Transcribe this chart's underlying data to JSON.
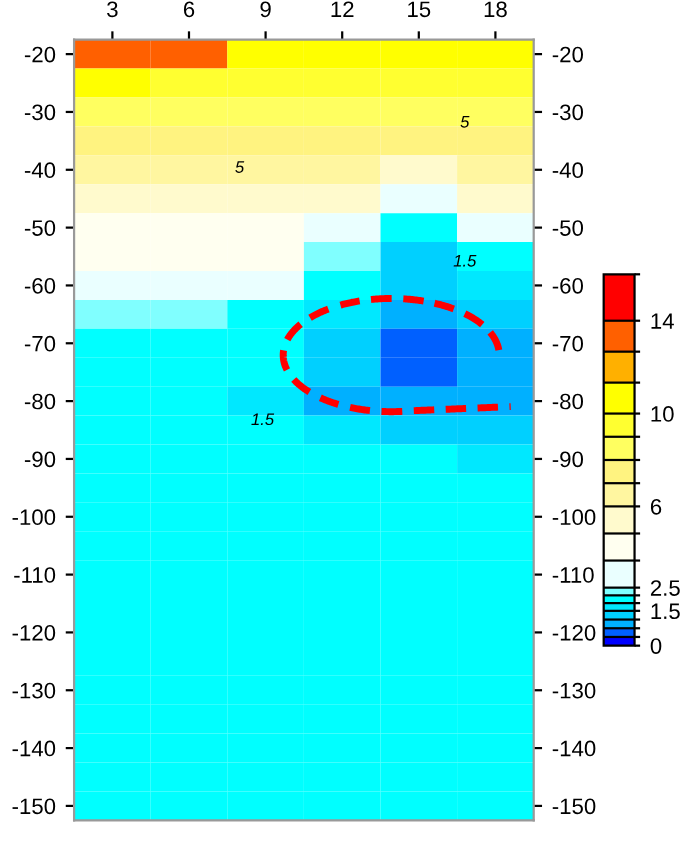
{
  "chart_data": {
    "type": "heatmap",
    "categories": [
      "3",
      "6",
      "9",
      "12",
      "15",
      "18"
    ],
    "y_categories": [
      "-20",
      null,
      "-30",
      null,
      "-40",
      null,
      "-50",
      null,
      "-60",
      null,
      "-70",
      null,
      "-80",
      null,
      "-90",
      null,
      "-100",
      null,
      "-110",
      null,
      "-120",
      null,
      "-130",
      null,
      "-140",
      null,
      "-150"
    ],
    "cells": [
      [
        13.33,
        13.33,
        10.67,
        10.67,
        10.67,
        10.67
      ],
      [
        10.67,
        9.5,
        9.5,
        9.5,
        9.5,
        9.5
      ],
      [
        8.5,
        8.5,
        8.5,
        8.5,
        8.5,
        8.5
      ],
      [
        7.5,
        7.5,
        7.5,
        7.5,
        7.5,
        7.5
      ],
      [
        6.5,
        6.5,
        6.5,
        6.5,
        5.42,
        6.5
      ],
      [
        5.42,
        5.42,
        5.42,
        5.42,
        3.08,
        5.42
      ],
      [
        4.25,
        4.25,
        4.25,
        3.08,
        2.0,
        3.08
      ],
      [
        4.25,
        4.25,
        4.25,
        2.33,
        1.31,
        2.0
      ],
      [
        3.08,
        3.08,
        3.08,
        2.0,
        1.31,
        1.67
      ],
      [
        2.33,
        2.33,
        2.0,
        1.67,
        0.94,
        1.31
      ],
      [
        2.0,
        2.0,
        2.0,
        1.31,
        0.56,
        0.94
      ],
      [
        2.0,
        2.0,
        2.0,
        1.31,
        0.56,
        0.94
      ],
      [
        2.0,
        2.0,
        1.67,
        0.94,
        0.94,
        0.94
      ],
      [
        2.0,
        2.0,
        2.0,
        1.67,
        1.31,
        1.31
      ],
      [
        2.0,
        2.0,
        2.0,
        2.0,
        2.0,
        1.67
      ],
      [
        2.0,
        2.0,
        2.0,
        2.0,
        2.0,
        2.0
      ],
      [
        2.0,
        2.0,
        2.0,
        2.0,
        2.0,
        2.0
      ],
      [
        2.0,
        2.0,
        2.0,
        2.0,
        2.0,
        2.0
      ],
      [
        2.0,
        2.0,
        2.0,
        2.0,
        2.0,
        2.0
      ],
      [
        2.0,
        2.0,
        2.0,
        2.0,
        2.0,
        2.0
      ],
      [
        2.0,
        2.0,
        2.0,
        2.0,
        2.0,
        2.0
      ],
      [
        2.0,
        2.0,
        2.0,
        2.0,
        2.0,
        2.0
      ],
      [
        2.0,
        2.0,
        2.0,
        2.0,
        2.0,
        2.0
      ],
      [
        2.0,
        2.0,
        2.0,
        2.0,
        2.0,
        2.0
      ],
      [
        2.0,
        2.0,
        2.0,
        2.0,
        2.0,
        2.0
      ],
      [
        2.0,
        2.0,
        2.0,
        2.0,
        2.0,
        2.0
      ],
      [
        2.0,
        2.0,
        2.0,
        2.0,
        2.0,
        2.0
      ]
    ],
    "cticks": [
      {
        "value": 0,
        "label": "0"
      },
      {
        "value": 0.375,
        "label": null
      },
      {
        "value": 0.75,
        "label": null
      },
      {
        "value": 1.125,
        "label": null
      },
      {
        "value": 1.5,
        "label": "1.5"
      },
      {
        "value": 1.833,
        "label": null
      },
      {
        "value": 2.167,
        "label": null
      },
      {
        "value": 2.5,
        "label": "2.5"
      },
      {
        "value": 3.667,
        "label": null
      },
      {
        "value": 4.833,
        "label": null
      },
      {
        "value": 6,
        "label": "6"
      },
      {
        "value": 7,
        "label": null
      },
      {
        "value": 8,
        "label": null
      },
      {
        "value": 9,
        "label": null
      },
      {
        "value": 10,
        "label": "10"
      },
      {
        "value": 11.333,
        "label": null
      },
      {
        "value": 12.667,
        "label": null
      },
      {
        "value": 14,
        "label": "14"
      },
      {
        "value": 16,
        "label": null
      }
    ],
    "colors": [
      "#0000ff",
      "#0060ff",
      "#00b0ff",
      "#00d0ff",
      "#00e8ff",
      "#00ffff",
      "#80ffff",
      "#eaffff",
      "#fffff0",
      "#fffacd",
      "#fff6a0",
      "#fff380",
      "#ffff60",
      "#ffff30",
      "#ffff00",
      "#ffb000",
      "#ff6000",
      "#ff0000"
    ],
    "annotations": [
      "5",
      "5",
      "1.5",
      "1.5"
    ],
    "grid": false
  }
}
